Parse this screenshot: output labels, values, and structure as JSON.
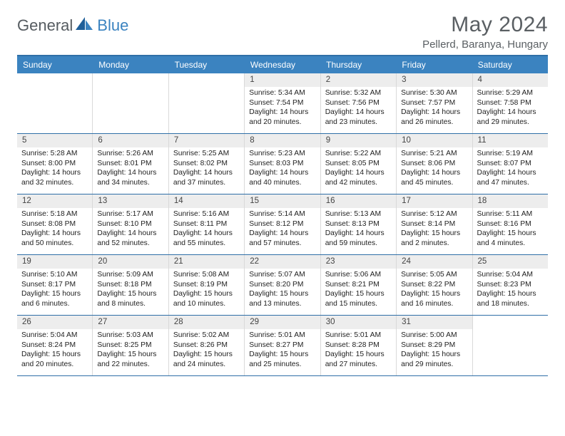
{
  "logo": {
    "part1": "General",
    "part2": "Blue"
  },
  "title": "May 2024",
  "location": "Pellerd, Baranya, Hungary",
  "colors": {
    "header_bg": "#3b83c0",
    "border": "#2f6fa7",
    "daynum_bg": "#ededed",
    "text": "#222222",
    "title_color": "#5a5f63"
  },
  "weekdays": [
    "Sunday",
    "Monday",
    "Tuesday",
    "Wednesday",
    "Thursday",
    "Friday",
    "Saturday"
  ],
  "weeks": [
    [
      {
        "n": "",
        "empty": true
      },
      {
        "n": "",
        "empty": true
      },
      {
        "n": "",
        "empty": true
      },
      {
        "n": "1",
        "sr": "Sunrise: 5:34 AM",
        "ss": "Sunset: 7:54 PM",
        "d1": "Daylight: 14 hours",
        "d2": "and 20 minutes."
      },
      {
        "n": "2",
        "sr": "Sunrise: 5:32 AM",
        "ss": "Sunset: 7:56 PM",
        "d1": "Daylight: 14 hours",
        "d2": "and 23 minutes."
      },
      {
        "n": "3",
        "sr": "Sunrise: 5:30 AM",
        "ss": "Sunset: 7:57 PM",
        "d1": "Daylight: 14 hours",
        "d2": "and 26 minutes."
      },
      {
        "n": "4",
        "sr": "Sunrise: 5:29 AM",
        "ss": "Sunset: 7:58 PM",
        "d1": "Daylight: 14 hours",
        "d2": "and 29 minutes."
      }
    ],
    [
      {
        "n": "5",
        "sr": "Sunrise: 5:28 AM",
        "ss": "Sunset: 8:00 PM",
        "d1": "Daylight: 14 hours",
        "d2": "and 32 minutes."
      },
      {
        "n": "6",
        "sr": "Sunrise: 5:26 AM",
        "ss": "Sunset: 8:01 PM",
        "d1": "Daylight: 14 hours",
        "d2": "and 34 minutes."
      },
      {
        "n": "7",
        "sr": "Sunrise: 5:25 AM",
        "ss": "Sunset: 8:02 PM",
        "d1": "Daylight: 14 hours",
        "d2": "and 37 minutes."
      },
      {
        "n": "8",
        "sr": "Sunrise: 5:23 AM",
        "ss": "Sunset: 8:03 PM",
        "d1": "Daylight: 14 hours",
        "d2": "and 40 minutes."
      },
      {
        "n": "9",
        "sr": "Sunrise: 5:22 AM",
        "ss": "Sunset: 8:05 PM",
        "d1": "Daylight: 14 hours",
        "d2": "and 42 minutes."
      },
      {
        "n": "10",
        "sr": "Sunrise: 5:21 AM",
        "ss": "Sunset: 8:06 PM",
        "d1": "Daylight: 14 hours",
        "d2": "and 45 minutes."
      },
      {
        "n": "11",
        "sr": "Sunrise: 5:19 AM",
        "ss": "Sunset: 8:07 PM",
        "d1": "Daylight: 14 hours",
        "d2": "and 47 minutes."
      }
    ],
    [
      {
        "n": "12",
        "sr": "Sunrise: 5:18 AM",
        "ss": "Sunset: 8:08 PM",
        "d1": "Daylight: 14 hours",
        "d2": "and 50 minutes."
      },
      {
        "n": "13",
        "sr": "Sunrise: 5:17 AM",
        "ss": "Sunset: 8:10 PM",
        "d1": "Daylight: 14 hours",
        "d2": "and 52 minutes."
      },
      {
        "n": "14",
        "sr": "Sunrise: 5:16 AM",
        "ss": "Sunset: 8:11 PM",
        "d1": "Daylight: 14 hours",
        "d2": "and 55 minutes."
      },
      {
        "n": "15",
        "sr": "Sunrise: 5:14 AM",
        "ss": "Sunset: 8:12 PM",
        "d1": "Daylight: 14 hours",
        "d2": "and 57 minutes."
      },
      {
        "n": "16",
        "sr": "Sunrise: 5:13 AM",
        "ss": "Sunset: 8:13 PM",
        "d1": "Daylight: 14 hours",
        "d2": "and 59 minutes."
      },
      {
        "n": "17",
        "sr": "Sunrise: 5:12 AM",
        "ss": "Sunset: 8:14 PM",
        "d1": "Daylight: 15 hours",
        "d2": "and 2 minutes."
      },
      {
        "n": "18",
        "sr": "Sunrise: 5:11 AM",
        "ss": "Sunset: 8:16 PM",
        "d1": "Daylight: 15 hours",
        "d2": "and 4 minutes."
      }
    ],
    [
      {
        "n": "19",
        "sr": "Sunrise: 5:10 AM",
        "ss": "Sunset: 8:17 PM",
        "d1": "Daylight: 15 hours",
        "d2": "and 6 minutes."
      },
      {
        "n": "20",
        "sr": "Sunrise: 5:09 AM",
        "ss": "Sunset: 8:18 PM",
        "d1": "Daylight: 15 hours",
        "d2": "and 8 minutes."
      },
      {
        "n": "21",
        "sr": "Sunrise: 5:08 AM",
        "ss": "Sunset: 8:19 PM",
        "d1": "Daylight: 15 hours",
        "d2": "and 10 minutes."
      },
      {
        "n": "22",
        "sr": "Sunrise: 5:07 AM",
        "ss": "Sunset: 8:20 PM",
        "d1": "Daylight: 15 hours",
        "d2": "and 13 minutes."
      },
      {
        "n": "23",
        "sr": "Sunrise: 5:06 AM",
        "ss": "Sunset: 8:21 PM",
        "d1": "Daylight: 15 hours",
        "d2": "and 15 minutes."
      },
      {
        "n": "24",
        "sr": "Sunrise: 5:05 AM",
        "ss": "Sunset: 8:22 PM",
        "d1": "Daylight: 15 hours",
        "d2": "and 16 minutes."
      },
      {
        "n": "25",
        "sr": "Sunrise: 5:04 AM",
        "ss": "Sunset: 8:23 PM",
        "d1": "Daylight: 15 hours",
        "d2": "and 18 minutes."
      }
    ],
    [
      {
        "n": "26",
        "sr": "Sunrise: 5:04 AM",
        "ss": "Sunset: 8:24 PM",
        "d1": "Daylight: 15 hours",
        "d2": "and 20 minutes."
      },
      {
        "n": "27",
        "sr": "Sunrise: 5:03 AM",
        "ss": "Sunset: 8:25 PM",
        "d1": "Daylight: 15 hours",
        "d2": "and 22 minutes."
      },
      {
        "n": "28",
        "sr": "Sunrise: 5:02 AM",
        "ss": "Sunset: 8:26 PM",
        "d1": "Daylight: 15 hours",
        "d2": "and 24 minutes."
      },
      {
        "n": "29",
        "sr": "Sunrise: 5:01 AM",
        "ss": "Sunset: 8:27 PM",
        "d1": "Daylight: 15 hours",
        "d2": "and 25 minutes."
      },
      {
        "n": "30",
        "sr": "Sunrise: 5:01 AM",
        "ss": "Sunset: 8:28 PM",
        "d1": "Daylight: 15 hours",
        "d2": "and 27 minutes."
      },
      {
        "n": "31",
        "sr": "Sunrise: 5:00 AM",
        "ss": "Sunset: 8:29 PM",
        "d1": "Daylight: 15 hours",
        "d2": "and 29 minutes."
      },
      {
        "n": "",
        "empty": true
      }
    ]
  ]
}
